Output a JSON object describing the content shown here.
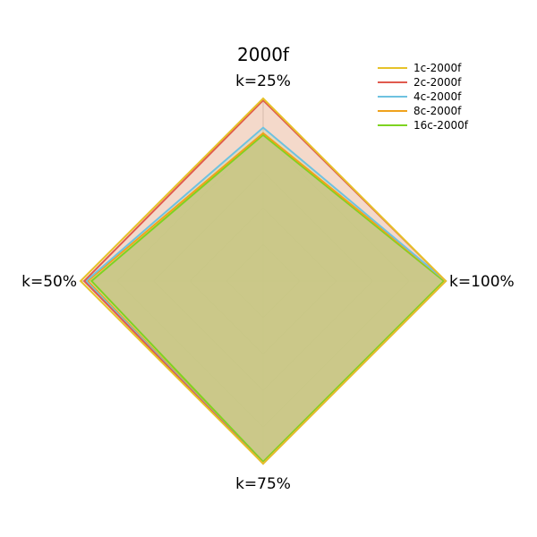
{
  "chart_data": {
    "type": "radar",
    "title": "2000f",
    "axes": [
      "k=25%",
      "k=100%",
      "k=75%",
      "k=50%"
    ],
    "rmax": 1.0,
    "grid_rings": [
      0.2,
      0.4,
      0.6,
      0.8,
      1.0
    ],
    "grid": true,
    "legend_position": "top-right",
    "series": [
      {
        "name": "1c-2000f",
        "color": "#e6c229",
        "values": [
          1.0,
          1.0,
          1.0,
          1.0
        ]
      },
      {
        "name": "2c-2000f",
        "color": "#e05a4e",
        "values": [
          0.99,
          1.0,
          1.0,
          0.98
        ]
      },
      {
        "name": "4c-2000f",
        "color": "#6ec2e0",
        "values": [
          0.84,
          1.0,
          1.0,
          0.97
        ]
      },
      {
        "name": "8c-2000f",
        "color": "#f0a21c",
        "values": [
          0.81,
          1.0,
          1.0,
          0.96
        ]
      },
      {
        "name": "16c-2000f",
        "color": "#7ed321",
        "values": [
          0.8,
          0.99,
          0.99,
          0.94
        ]
      }
    ],
    "fill_color": "#c7c783"
  }
}
